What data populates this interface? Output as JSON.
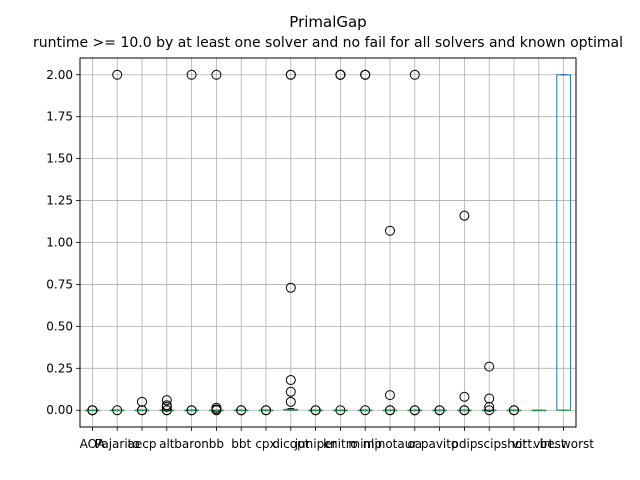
{
  "chart_data": {
    "type": "box",
    "title": "PrimalGap",
    "subtitle": "runtime >= 10.0 by at least one solver and no fail for all solvers and known optimal",
    "xlabel": "",
    "ylabel": "",
    "ylim": [
      -0.1,
      2.1
    ],
    "yticks": [
      0.0,
      0.25,
      0.5,
      0.75,
      1.0,
      1.25,
      1.5,
      1.75,
      2.0
    ],
    "ytick_labels": [
      "0.00",
      "0.25",
      "0.50",
      "0.75",
      "1.00",
      "1.25",
      "1.50",
      "1.75",
      "2.00"
    ],
    "grid": true,
    "colors": {
      "box": "#1f77b4",
      "median": "#2ca02c",
      "flier": "#000000",
      "grid": "#b0b0b0"
    },
    "categories": [
      "AOA",
      "Pajarito",
      "aecp",
      "alt",
      "baron",
      "bb",
      "bbt",
      "cpx",
      "dicopt",
      "juniper",
      "knitro",
      "minlp",
      "minotaur",
      "oa",
      "pavito",
      "pdip",
      "scip",
      "shot",
      "virt. best",
      "virt. worst"
    ],
    "boxes": [
      {
        "name": "AOA",
        "q1": 0,
        "median": 0,
        "q3": 0,
        "whislo": 0,
        "whishi": 0,
        "fliers": [
          0.0,
          0.0,
          0.0
        ]
      },
      {
        "name": "Pajarito",
        "q1": 0,
        "median": 0,
        "q3": 0,
        "whislo": 0,
        "whishi": 0,
        "fliers": [
          2.0,
          0.0
        ]
      },
      {
        "name": "aecp",
        "q1": 0,
        "median": 0,
        "q3": 0,
        "whislo": 0,
        "whishi": 0,
        "fliers": [
          0.05,
          0.0,
          0.0
        ]
      },
      {
        "name": "alt",
        "q1": 0,
        "median": 0,
        "q3": 0,
        "whislo": 0,
        "whishi": 0,
        "fliers": [
          0.06,
          0.03,
          0.02,
          0.0,
          0.0
        ]
      },
      {
        "name": "baron",
        "q1": 0,
        "median": 0,
        "q3": 0,
        "whislo": 0,
        "whishi": 0,
        "fliers": [
          2.0,
          0.0,
          0.0
        ]
      },
      {
        "name": "bb",
        "q1": 0,
        "median": 0,
        "q3": 0,
        "whislo": 0,
        "whishi": 0,
        "fliers": [
          2.0,
          0.015,
          0.005,
          0.0
        ]
      },
      {
        "name": "bbt",
        "q1": 0,
        "median": 0,
        "q3": 0,
        "whislo": 0,
        "whishi": 0,
        "fliers": [
          0.0,
          0.0
        ]
      },
      {
        "name": "cpx",
        "q1": 0,
        "median": 0,
        "q3": 0,
        "whislo": 0,
        "whishi": 0,
        "fliers": [
          0.0,
          0.0
        ]
      },
      {
        "name": "dicopt",
        "q1": 0,
        "median": 0.002,
        "q3": 0.005,
        "whislo": 0,
        "whishi": 0.01,
        "fliers": [
          2.0,
          2.0,
          0.73,
          0.18,
          0.11,
          0.05
        ]
      },
      {
        "name": "juniper",
        "q1": 0,
        "median": 0,
        "q3": 0,
        "whislo": 0,
        "whishi": 0,
        "fliers": [
          0.0,
          0.0
        ]
      },
      {
        "name": "knitro",
        "q1": 0,
        "median": 0,
        "q3": 0,
        "whislo": 0,
        "whishi": 0,
        "fliers": [
          2.0,
          2.0,
          2.0,
          0.0
        ]
      },
      {
        "name": "minlp",
        "q1": 0,
        "median": 0,
        "q3": 0,
        "whislo": 0,
        "whishi": 0,
        "fliers": [
          2.0,
          2.0,
          2.0,
          0.0
        ]
      },
      {
        "name": "minotaur",
        "q1": 0,
        "median": 0,
        "q3": 0,
        "whislo": 0,
        "whishi": 0,
        "fliers": [
          1.07,
          0.09,
          0.0,
          0.0
        ]
      },
      {
        "name": "oa",
        "q1": 0,
        "median": 0,
        "q3": 0,
        "whislo": 0,
        "whishi": 0,
        "fliers": [
          2.0,
          0.0,
          0.0
        ]
      },
      {
        "name": "pavito",
        "q1": 0,
        "median": 0,
        "q3": 0,
        "whislo": 0,
        "whishi": 0,
        "fliers": [
          0.0,
          0.0
        ]
      },
      {
        "name": "pdip",
        "q1": 0,
        "median": 0,
        "q3": 0,
        "whislo": 0,
        "whishi": 0,
        "fliers": [
          1.16,
          0.08,
          0.0,
          0.0
        ]
      },
      {
        "name": "scip",
        "q1": 0,
        "median": 0,
        "q3": 0,
        "whislo": 0,
        "whishi": 0,
        "fliers": [
          0.26,
          0.07,
          0.02,
          0.0
        ]
      },
      {
        "name": "shot",
        "q1": 0,
        "median": 0,
        "q3": 0,
        "whislo": 0,
        "whishi": 0,
        "fliers": [
          0.0,
          0.0
        ]
      },
      {
        "name": "virt. best",
        "q1": 0,
        "median": 0,
        "q3": 0,
        "whislo": 0,
        "whishi": 0,
        "fliers": []
      },
      {
        "name": "virt. worst",
        "q1": 0,
        "median": 0,
        "q3": 2.0,
        "whislo": 0,
        "whishi": 2.0,
        "fliers": []
      }
    ]
  }
}
